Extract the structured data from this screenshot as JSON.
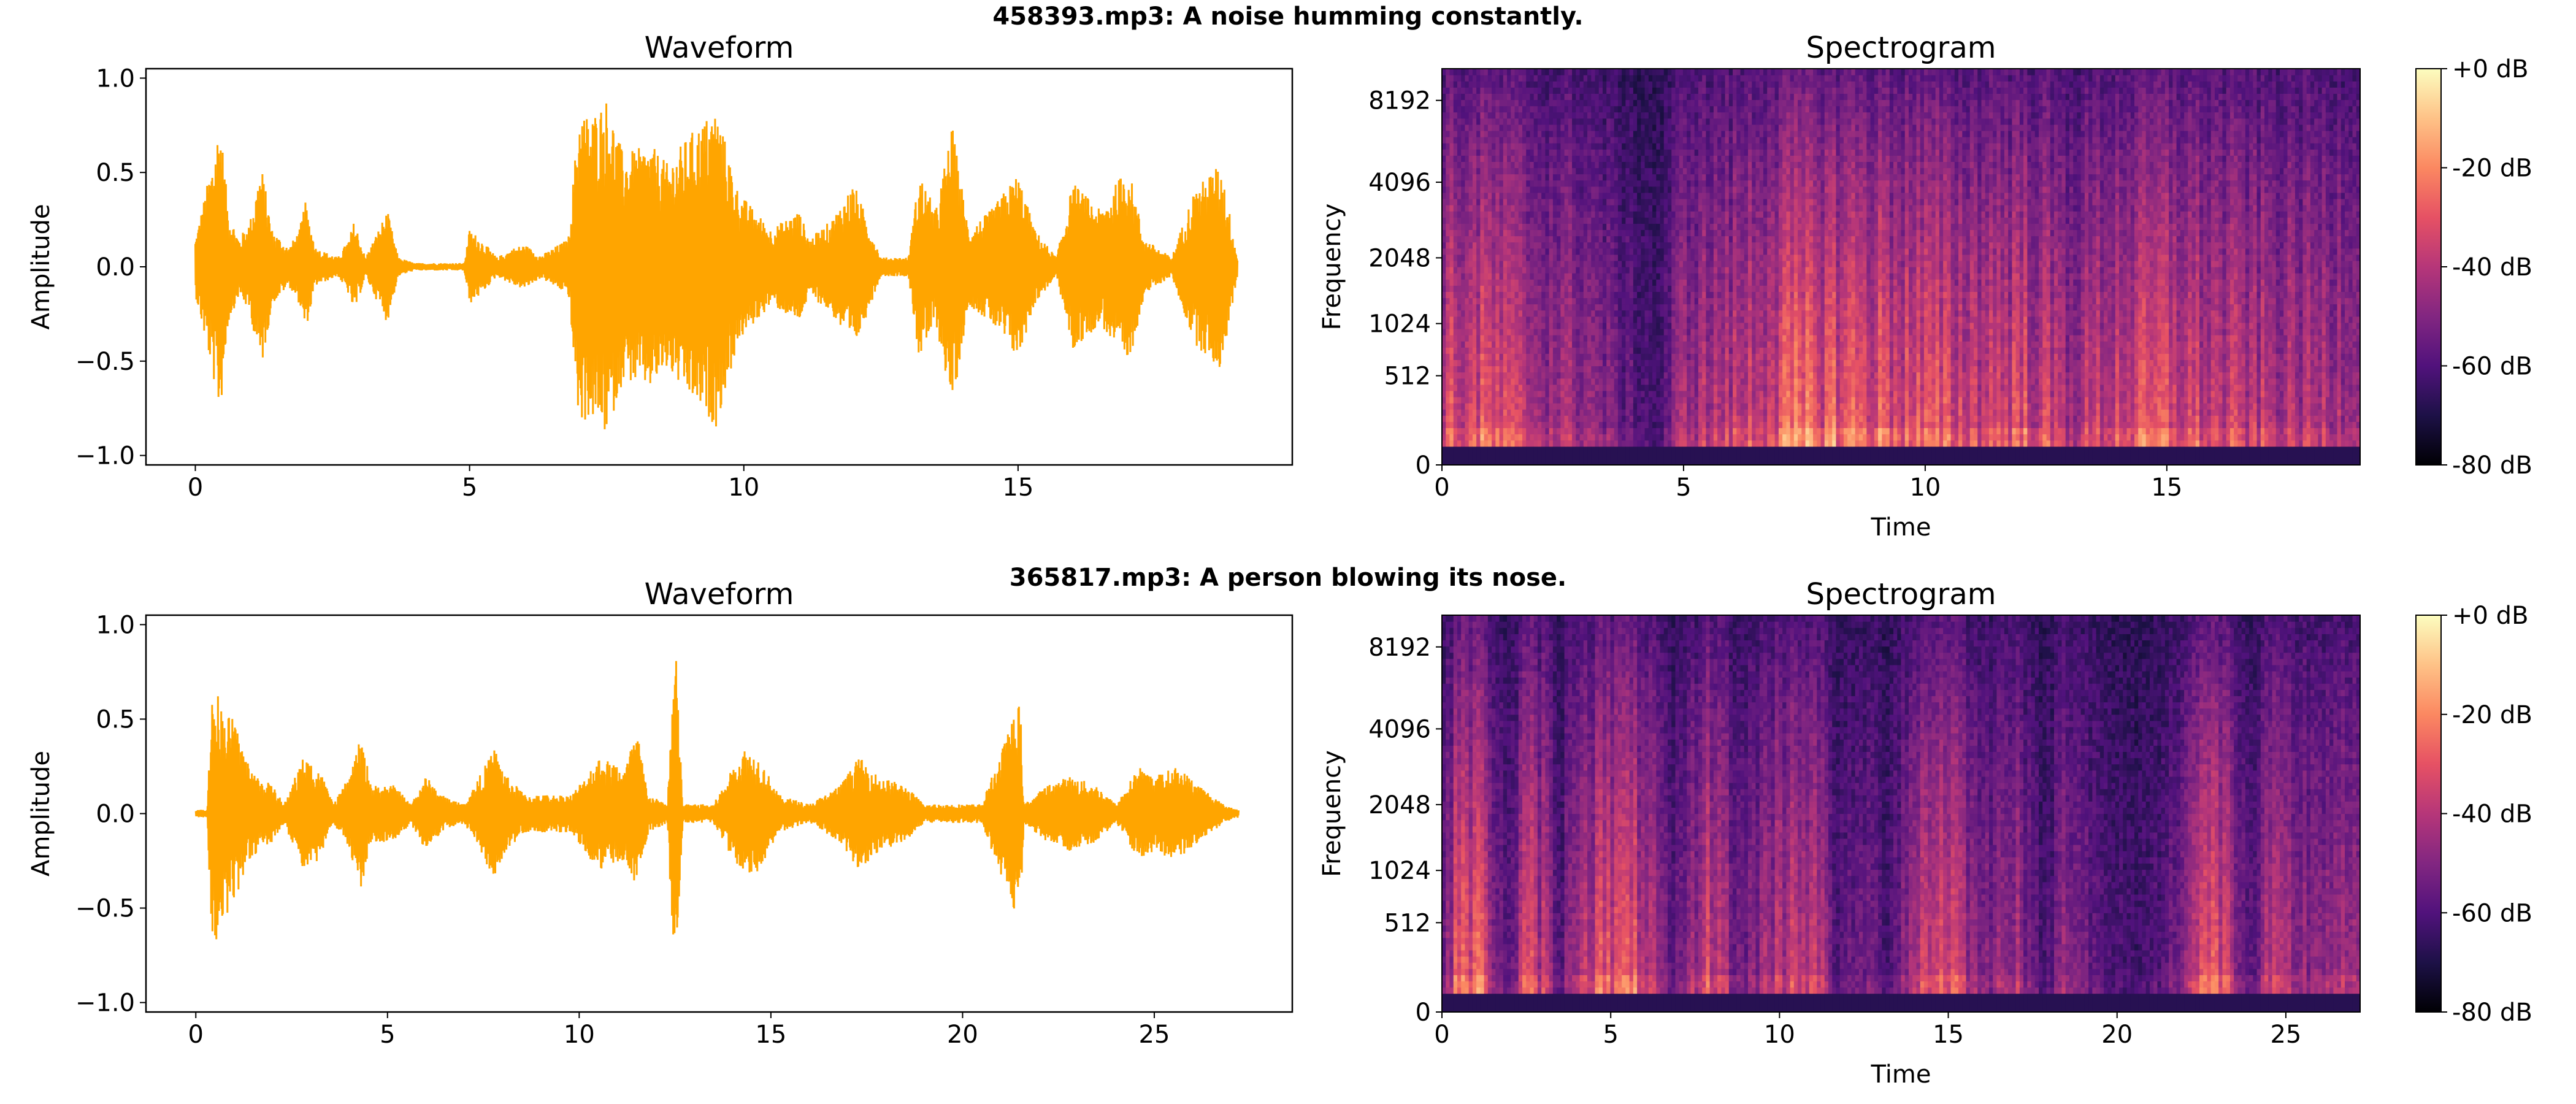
{
  "colors": {
    "waveform": "#ffa500",
    "colormap": [
      "#000004",
      "#1d1147",
      "#51127c",
      "#822681",
      "#b63679",
      "#e65164",
      "#fb8861",
      "#fec287",
      "#fcfdbf"
    ]
  },
  "chart_data": [
    {
      "figure_title": "458393.mp3: A noise humming constantly.",
      "waveform": {
        "type": "line",
        "title": "Waveform",
        "xlabel": "",
        "ylabel": "Amplitude",
        "xlim": [
          -0.9,
          20.0
        ],
        "ylim": [
          -1.05,
          1.05
        ],
        "xticks": [
          0,
          5,
          10,
          15
        ],
        "yticks": [
          -1.0,
          -0.5,
          0.0,
          0.5,
          1.0
        ],
        "ytick_labels": [
          "−1.0",
          "−0.5",
          "0.0",
          "0.5",
          "1.0"
        ],
        "duration": 19.0,
        "envelope": [
          [
            0.0,
            0.15
          ],
          [
            0.3,
            0.55
          ],
          [
            0.45,
            0.8
          ],
          [
            0.6,
            0.3
          ],
          [
            0.8,
            0.15
          ],
          [
            1.0,
            0.25
          ],
          [
            1.2,
            0.55
          ],
          [
            1.4,
            0.2
          ],
          [
            1.7,
            0.1
          ],
          [
            1.9,
            0.2
          ],
          [
            2.0,
            0.35
          ],
          [
            2.2,
            0.1
          ],
          [
            2.6,
            0.05
          ],
          [
            2.8,
            0.15
          ],
          [
            2.9,
            0.25
          ],
          [
            3.1,
            0.05
          ],
          [
            3.5,
            0.3
          ],
          [
            3.7,
            0.05
          ],
          [
            4.0,
            0.02
          ],
          [
            4.9,
            0.02
          ],
          [
            5.0,
            0.2
          ],
          [
            5.2,
            0.15
          ],
          [
            5.5,
            0.05
          ],
          [
            5.8,
            0.1
          ],
          [
            6.0,
            0.12
          ],
          [
            6.3,
            0.06
          ],
          [
            6.8,
            0.15
          ],
          [
            7.0,
            0.85
          ],
          [
            7.2,
            0.8
          ],
          [
            7.5,
            0.9
          ],
          [
            7.8,
            0.6
          ],
          [
            8.3,
            0.65
          ],
          [
            8.6,
            0.55
          ],
          [
            9.0,
            0.7
          ],
          [
            9.5,
            0.85
          ],
          [
            9.9,
            0.4
          ],
          [
            10.2,
            0.3
          ],
          [
            10.5,
            0.2
          ],
          [
            11.0,
            0.3
          ],
          [
            11.2,
            0.15
          ],
          [
            11.6,
            0.25
          ],
          [
            12.0,
            0.45
          ],
          [
            12.5,
            0.05
          ],
          [
            13.0,
            0.05
          ],
          [
            13.2,
            0.5
          ],
          [
            13.5,
            0.3
          ],
          [
            13.8,
            0.75
          ],
          [
            14.1,
            0.2
          ],
          [
            14.5,
            0.3
          ],
          [
            15.0,
            0.5
          ],
          [
            15.3,
            0.2
          ],
          [
            15.7,
            0.05
          ],
          [
            16.0,
            0.45
          ],
          [
            16.5,
            0.3
          ],
          [
            17.0,
            0.55
          ],
          [
            17.3,
            0.15
          ],
          [
            17.8,
            0.05
          ],
          [
            18.2,
            0.4
          ],
          [
            18.5,
            0.5
          ],
          [
            18.7,
            0.55
          ],
          [
            19.0,
            0.05
          ]
        ]
      },
      "spectrogram": {
        "type": "heatmap",
        "title": "Spectrogram",
        "xlabel": "Time",
        "ylabel": "Frequency",
        "xlim": [
          0,
          19.0
        ],
        "xticks": [
          0,
          5,
          10,
          15
        ],
        "yticks": [
          "0",
          "512",
          "1024",
          "2048",
          "4096",
          "8192"
        ],
        "colorbar_ticks": [
          "+0 dB",
          "-20 dB",
          "-40 dB",
          "-60 dB",
          "-80 dB"
        ],
        "colorbar_range_db": [
          -80,
          0
        ],
        "energy_profile": [
          [
            0,
            0.7
          ],
          [
            1,
            0.75
          ],
          [
            2,
            0.55
          ],
          [
            3,
            0.5
          ],
          [
            3.7,
            0.3
          ],
          [
            4.5,
            0.15
          ],
          [
            5.0,
            0.55
          ],
          [
            6.0,
            0.6
          ],
          [
            7.0,
            0.8
          ],
          [
            8.0,
            0.85
          ],
          [
            9.0,
            0.8
          ],
          [
            10.0,
            0.75
          ],
          [
            11.0,
            0.7
          ],
          [
            12.0,
            0.75
          ],
          [
            13.0,
            0.55
          ],
          [
            14.0,
            0.7
          ],
          [
            15.0,
            0.75
          ],
          [
            16.0,
            0.65
          ],
          [
            17.0,
            0.6
          ],
          [
            18.0,
            0.55
          ],
          [
            19.0,
            0.6
          ]
        ]
      }
    },
    {
      "figure_title": "365817.mp3: A person blowing its nose.",
      "waveform": {
        "type": "line",
        "title": "Waveform",
        "xlabel": "",
        "ylabel": "Amplitude",
        "xlim": [
          -1.3,
          28.6
        ],
        "ylim": [
          -1.05,
          1.05
        ],
        "xticks": [
          0,
          5,
          10,
          15,
          20,
          25
        ],
        "yticks": [
          -1.0,
          -0.5,
          0.0,
          0.5,
          1.0
        ],
        "ytick_labels": [
          "−1.0",
          "−0.5",
          "0.0",
          "0.5",
          "1.0"
        ],
        "duration": 27.2,
        "envelope": [
          [
            0.0,
            0.02
          ],
          [
            0.3,
            0.02
          ],
          [
            0.4,
            0.6
          ],
          [
            0.5,
            0.7
          ],
          [
            0.7,
            0.55
          ],
          [
            1.0,
            0.5
          ],
          [
            1.3,
            0.3
          ],
          [
            1.6,
            0.2
          ],
          [
            2.0,
            0.15
          ],
          [
            2.3,
            0.05
          ],
          [
            2.8,
            0.3
          ],
          [
            3.2,
            0.25
          ],
          [
            3.6,
            0.05
          ],
          [
            4.0,
            0.2
          ],
          [
            4.3,
            0.4
          ],
          [
            4.6,
            0.15
          ],
          [
            5.2,
            0.15
          ],
          [
            5.6,
            0.05
          ],
          [
            6.0,
            0.2
          ],
          [
            6.4,
            0.1
          ],
          [
            7.0,
            0.05
          ],
          [
            7.8,
            0.35
          ],
          [
            8.1,
            0.2
          ],
          [
            8.6,
            0.1
          ],
          [
            9.0,
            0.1
          ],
          [
            9.8,
            0.1
          ],
          [
            10.5,
            0.3
          ],
          [
            11.2,
            0.25
          ],
          [
            11.5,
            0.45
          ],
          [
            11.8,
            0.1
          ],
          [
            12.3,
            0.05
          ],
          [
            12.5,
            0.95
          ],
          [
            12.7,
            0.05
          ],
          [
            13.5,
            0.05
          ],
          [
            14.3,
            0.35
          ],
          [
            14.7,
            0.3
          ],
          [
            15.2,
            0.1
          ],
          [
            16.0,
            0.05
          ],
          [
            16.8,
            0.15
          ],
          [
            17.3,
            0.3
          ],
          [
            17.8,
            0.2
          ],
          [
            18.5,
            0.15
          ],
          [
            19.0,
            0.05
          ],
          [
            20.0,
            0.05
          ],
          [
            20.5,
            0.05
          ],
          [
            21.5,
            0.6
          ],
          [
            21.6,
            0.05
          ],
          [
            22.2,
            0.15
          ],
          [
            22.8,
            0.2
          ],
          [
            23.5,
            0.15
          ],
          [
            24.0,
            0.05
          ],
          [
            24.6,
            0.25
          ],
          [
            25.0,
            0.2
          ],
          [
            25.6,
            0.25
          ],
          [
            26.2,
            0.15
          ],
          [
            26.8,
            0.05
          ],
          [
            27.2,
            0.02
          ]
        ]
      },
      "spectrogram": {
        "type": "heatmap",
        "title": "Spectrogram",
        "xlabel": "Time",
        "ylabel": "Frequency",
        "xlim": [
          0,
          27.2
        ],
        "xticks": [
          0,
          5,
          10,
          15,
          20,
          25
        ],
        "yticks": [
          "0",
          "512",
          "1024",
          "2048",
          "4096",
          "8192"
        ],
        "colorbar_ticks": [
          "+0 dB",
          "-20 dB",
          "-40 dB",
          "-60 dB",
          "-80 dB"
        ],
        "colorbar_range_db": [
          -80,
          0
        ],
        "energy_profile": [
          [
            0,
            0.3
          ],
          [
            0.5,
            0.8
          ],
          [
            1.0,
            0.85
          ],
          [
            2.0,
            0.2
          ],
          [
            2.5,
            0.7
          ],
          [
            3.0,
            0.6
          ],
          [
            3.5,
            0.2
          ],
          [
            4.0,
            0.65
          ],
          [
            5.0,
            0.75
          ],
          [
            6.0,
            0.7
          ],
          [
            6.8,
            0.2
          ],
          [
            7.5,
            0.5
          ],
          [
            8.0,
            0.75
          ],
          [
            8.8,
            0.3
          ],
          [
            9.5,
            0.5
          ],
          [
            10.5,
            0.7
          ],
          [
            11.0,
            0.65
          ],
          [
            11.8,
            0.2
          ],
          [
            12.5,
            0.35
          ],
          [
            13.2,
            0.2
          ],
          [
            14.0,
            0.6
          ],
          [
            15.0,
            0.8
          ],
          [
            16.0,
            0.35
          ],
          [
            17.0,
            0.6
          ],
          [
            17.5,
            0.25
          ],
          [
            18.0,
            0.2
          ],
          [
            18.5,
            0.55
          ],
          [
            19.5,
            0.2
          ],
          [
            20.5,
            0.15
          ],
          [
            21.5,
            0.25
          ],
          [
            22.0,
            0.55
          ],
          [
            23.0,
            0.8
          ],
          [
            24.0,
            0.2
          ],
          [
            24.5,
            0.55
          ],
          [
            25.5,
            0.45
          ],
          [
            26.5,
            0.5
          ],
          [
            27.2,
            0.4
          ]
        ]
      }
    }
  ]
}
